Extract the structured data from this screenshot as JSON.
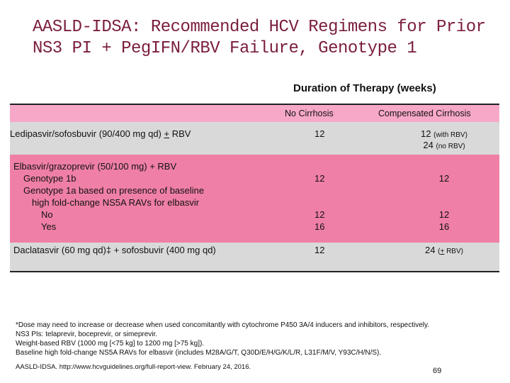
{
  "slide": {
    "title_line1": "AASLD-IDSA: Recommended HCV Regimens for Prior",
    "title_line2": "NS3 PI + PegIFN/RBV Failure, Genotype 1",
    "table_header": "Duration of Therapy (weeks)",
    "columns": {
      "no_cirrhosis": "No Cirrhosis",
      "compensated": "Compensated Cirrhosis"
    },
    "rows": {
      "r1": {
        "regimen_prefix": "Ledipasvir/sofosbuvir (90/400 mg qd) ",
        "regimen_pm": "+",
        "regimen_suffix": " RBV",
        "no_cirrhosis": "12",
        "comp_line1": "12",
        "comp_line1_note": "(with RBV)",
        "comp_line2": "24",
        "comp_line2_note": "(no RBV)"
      },
      "r2": {
        "line1": "Elbasvir/grazoprevir (50/100 mg) + RBV",
        "line2": "Genotype 1b",
        "line3": "Genotype 1a based on presence of baseline",
        "line4": "high fold-change NS5A RAVs for elbasvir",
        "line5": "No",
        "line6": "Yes",
        "gt1b_no_cirr": "12",
        "gt1b_comp": "12",
        "no_no_cirr": "12",
        "yes_no_cirr": "16",
        "no_comp": "12",
        "yes_comp": "16"
      },
      "r3": {
        "regimen": "Daclatasvir (60 mg qd)‡ + sofosbuvir (400 mg qd)",
        "no_cirrhosis": "12",
        "comp": "24",
        "comp_note_prefix": "(",
        "comp_note_pm": "+",
        "comp_note_suffix": " RBV)"
      }
    },
    "footnotes": [
      "*Dose may need to increase or decrease when used concomitantly with cytochrome P450 3A/4 inducers and inhibitors, respectively.",
      "NS3 PIs: telaprevir, boceprevir, or simeprevir.",
      "Weight-based RBV (1000 mg [<75 kg] to 1200 mg [>75 kg]).",
      "Baseline high fold-change NS5A RAVs for elbasvir (includes M28A/G/T, Q30D/E/H/G/K/L/R, L31F/M/V, Y93C/H/N/S)."
    ],
    "citation": "AASLD-IDSA. http://www.hcvguidelines.org/full-report-view. February 24, 2016.",
    "page_number": "69"
  }
}
